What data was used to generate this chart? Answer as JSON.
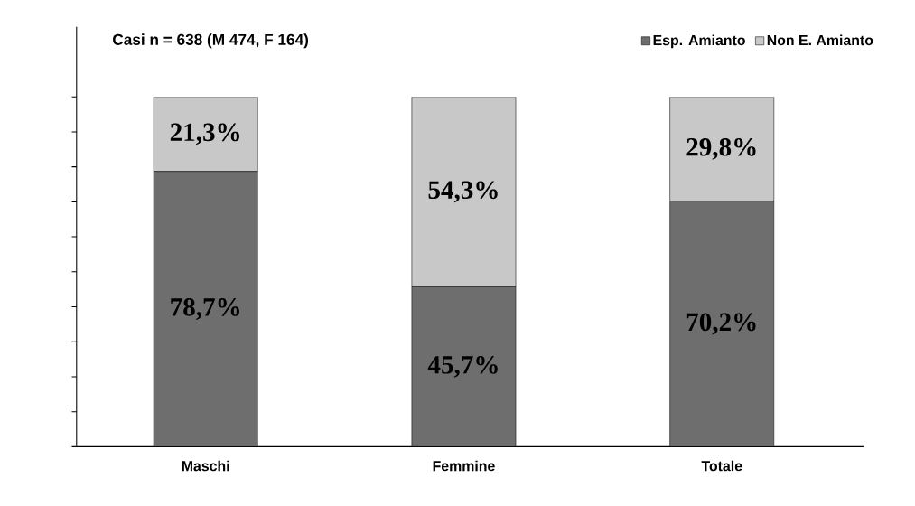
{
  "chart_data": {
    "type": "bar",
    "stacked": true,
    "title": "Casi n = 638 (M 474, F 164)",
    "categories": [
      "Maschi",
      "Femmine",
      "Totale"
    ],
    "series": [
      {
        "name": "Esp. Amianto",
        "color": "#6e6e6e",
        "values": [
          78.7,
          45.7,
          70.2
        ],
        "value_labels": [
          "78,7%",
          "45,7%",
          "70,2%"
        ]
      },
      {
        "name": "Non E. Amianto",
        "color": "#c8c8c8",
        "values": [
          21.3,
          54.3,
          29.8
        ],
        "value_labels": [
          "21,3%",
          "54,3%",
          "29,8%"
        ]
      }
    ],
    "tick_labels": "x",
    "legend": "top right",
    "grid": false
  }
}
